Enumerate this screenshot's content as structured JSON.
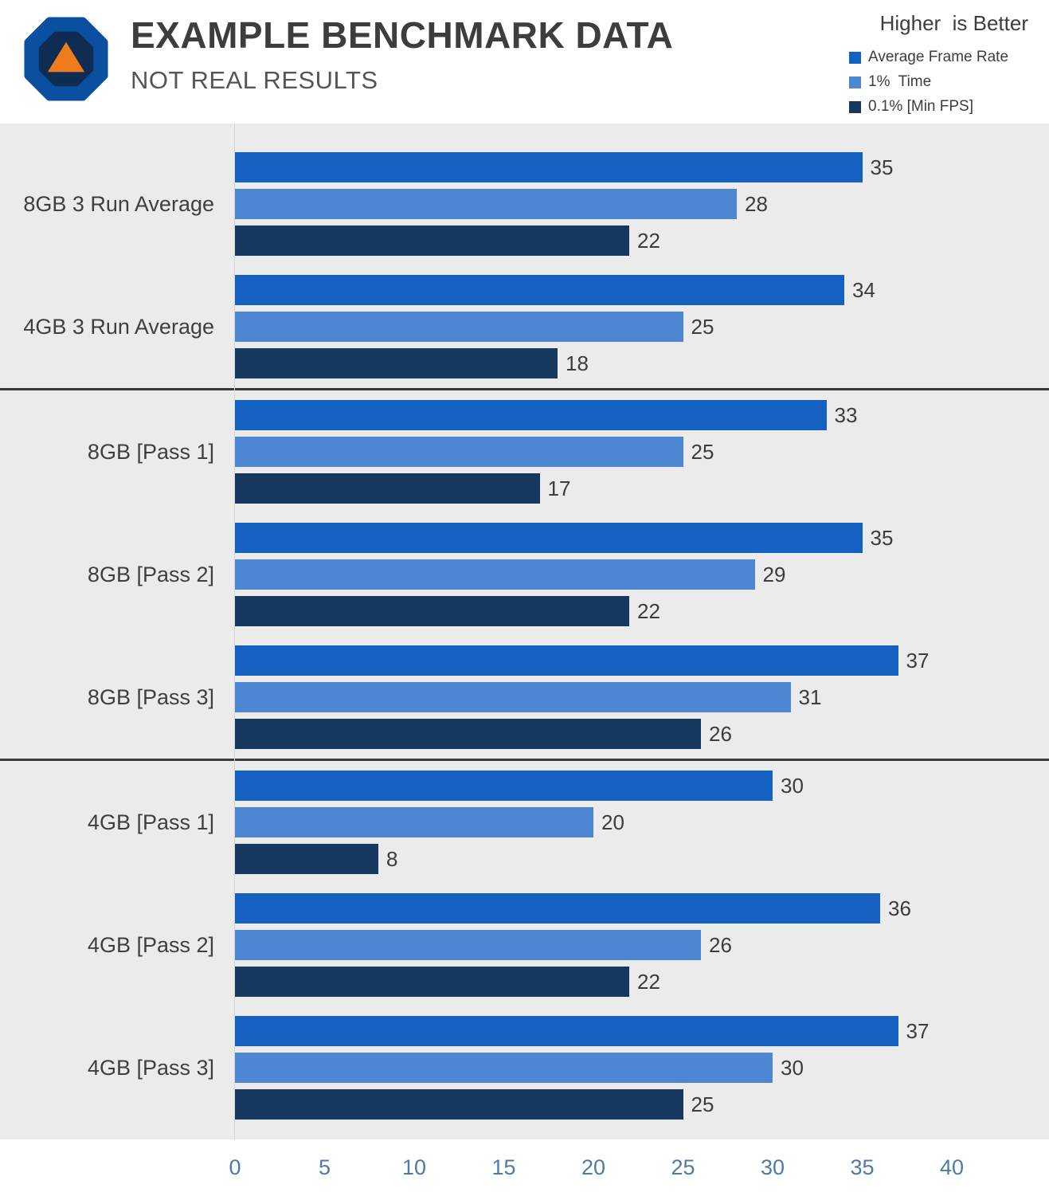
{
  "header": {
    "title": "EXAMPLE BENCHMARK DATA",
    "subtitle": "NOT REAL RESULTS",
    "note": "Higher  is Better"
  },
  "legend": [
    {
      "label": "Average Frame Rate",
      "color": "#1561c1"
    },
    {
      "label": "1%  Time",
      "color": "#4d86d2"
    },
    {
      "label": "0.1% [Min FPS]",
      "color": "#16385f"
    }
  ],
  "logo_colors": {
    "outer": "#0a4fa0",
    "inner": "#0f2c52",
    "triangle": "#ee7c1c"
  },
  "chart_data": {
    "type": "bar",
    "orientation": "horizontal",
    "title": "EXAMPLE BENCHMARK DATA",
    "subtitle": "NOT REAL RESULTS",
    "note": "Higher is Better",
    "categories": [
      "8GB 3 Run Average",
      "4GB 3 Run Average",
      "8GB [Pass 1]",
      "8GB [Pass 2]",
      "8GB [Pass 3]",
      "4GB [Pass 1]",
      "4GB [Pass 2]",
      "4GB [Pass 3]"
    ],
    "series": [
      {
        "name": "Average Frame Rate",
        "color": "#1561c1",
        "values": [
          35,
          34,
          33,
          35,
          37,
          30,
          36,
          37
        ]
      },
      {
        "name": "1% Time",
        "color": "#4d86d2",
        "values": [
          28,
          25,
          25,
          29,
          31,
          20,
          26,
          30
        ]
      },
      {
        "name": "0.1% [Min FPS]",
        "color": "#16385f",
        "values": [
          22,
          18,
          17,
          22,
          26,
          8,
          22,
          25
        ]
      }
    ],
    "xlim": [
      0,
      40
    ],
    "x_ticks": [
      0,
      5,
      10,
      15,
      20,
      25,
      30,
      35,
      40
    ],
    "group_separators_after": [
      1,
      4
    ],
    "legend_position": "top-right",
    "grid": false,
    "plot_background": "#ebebeb"
  }
}
